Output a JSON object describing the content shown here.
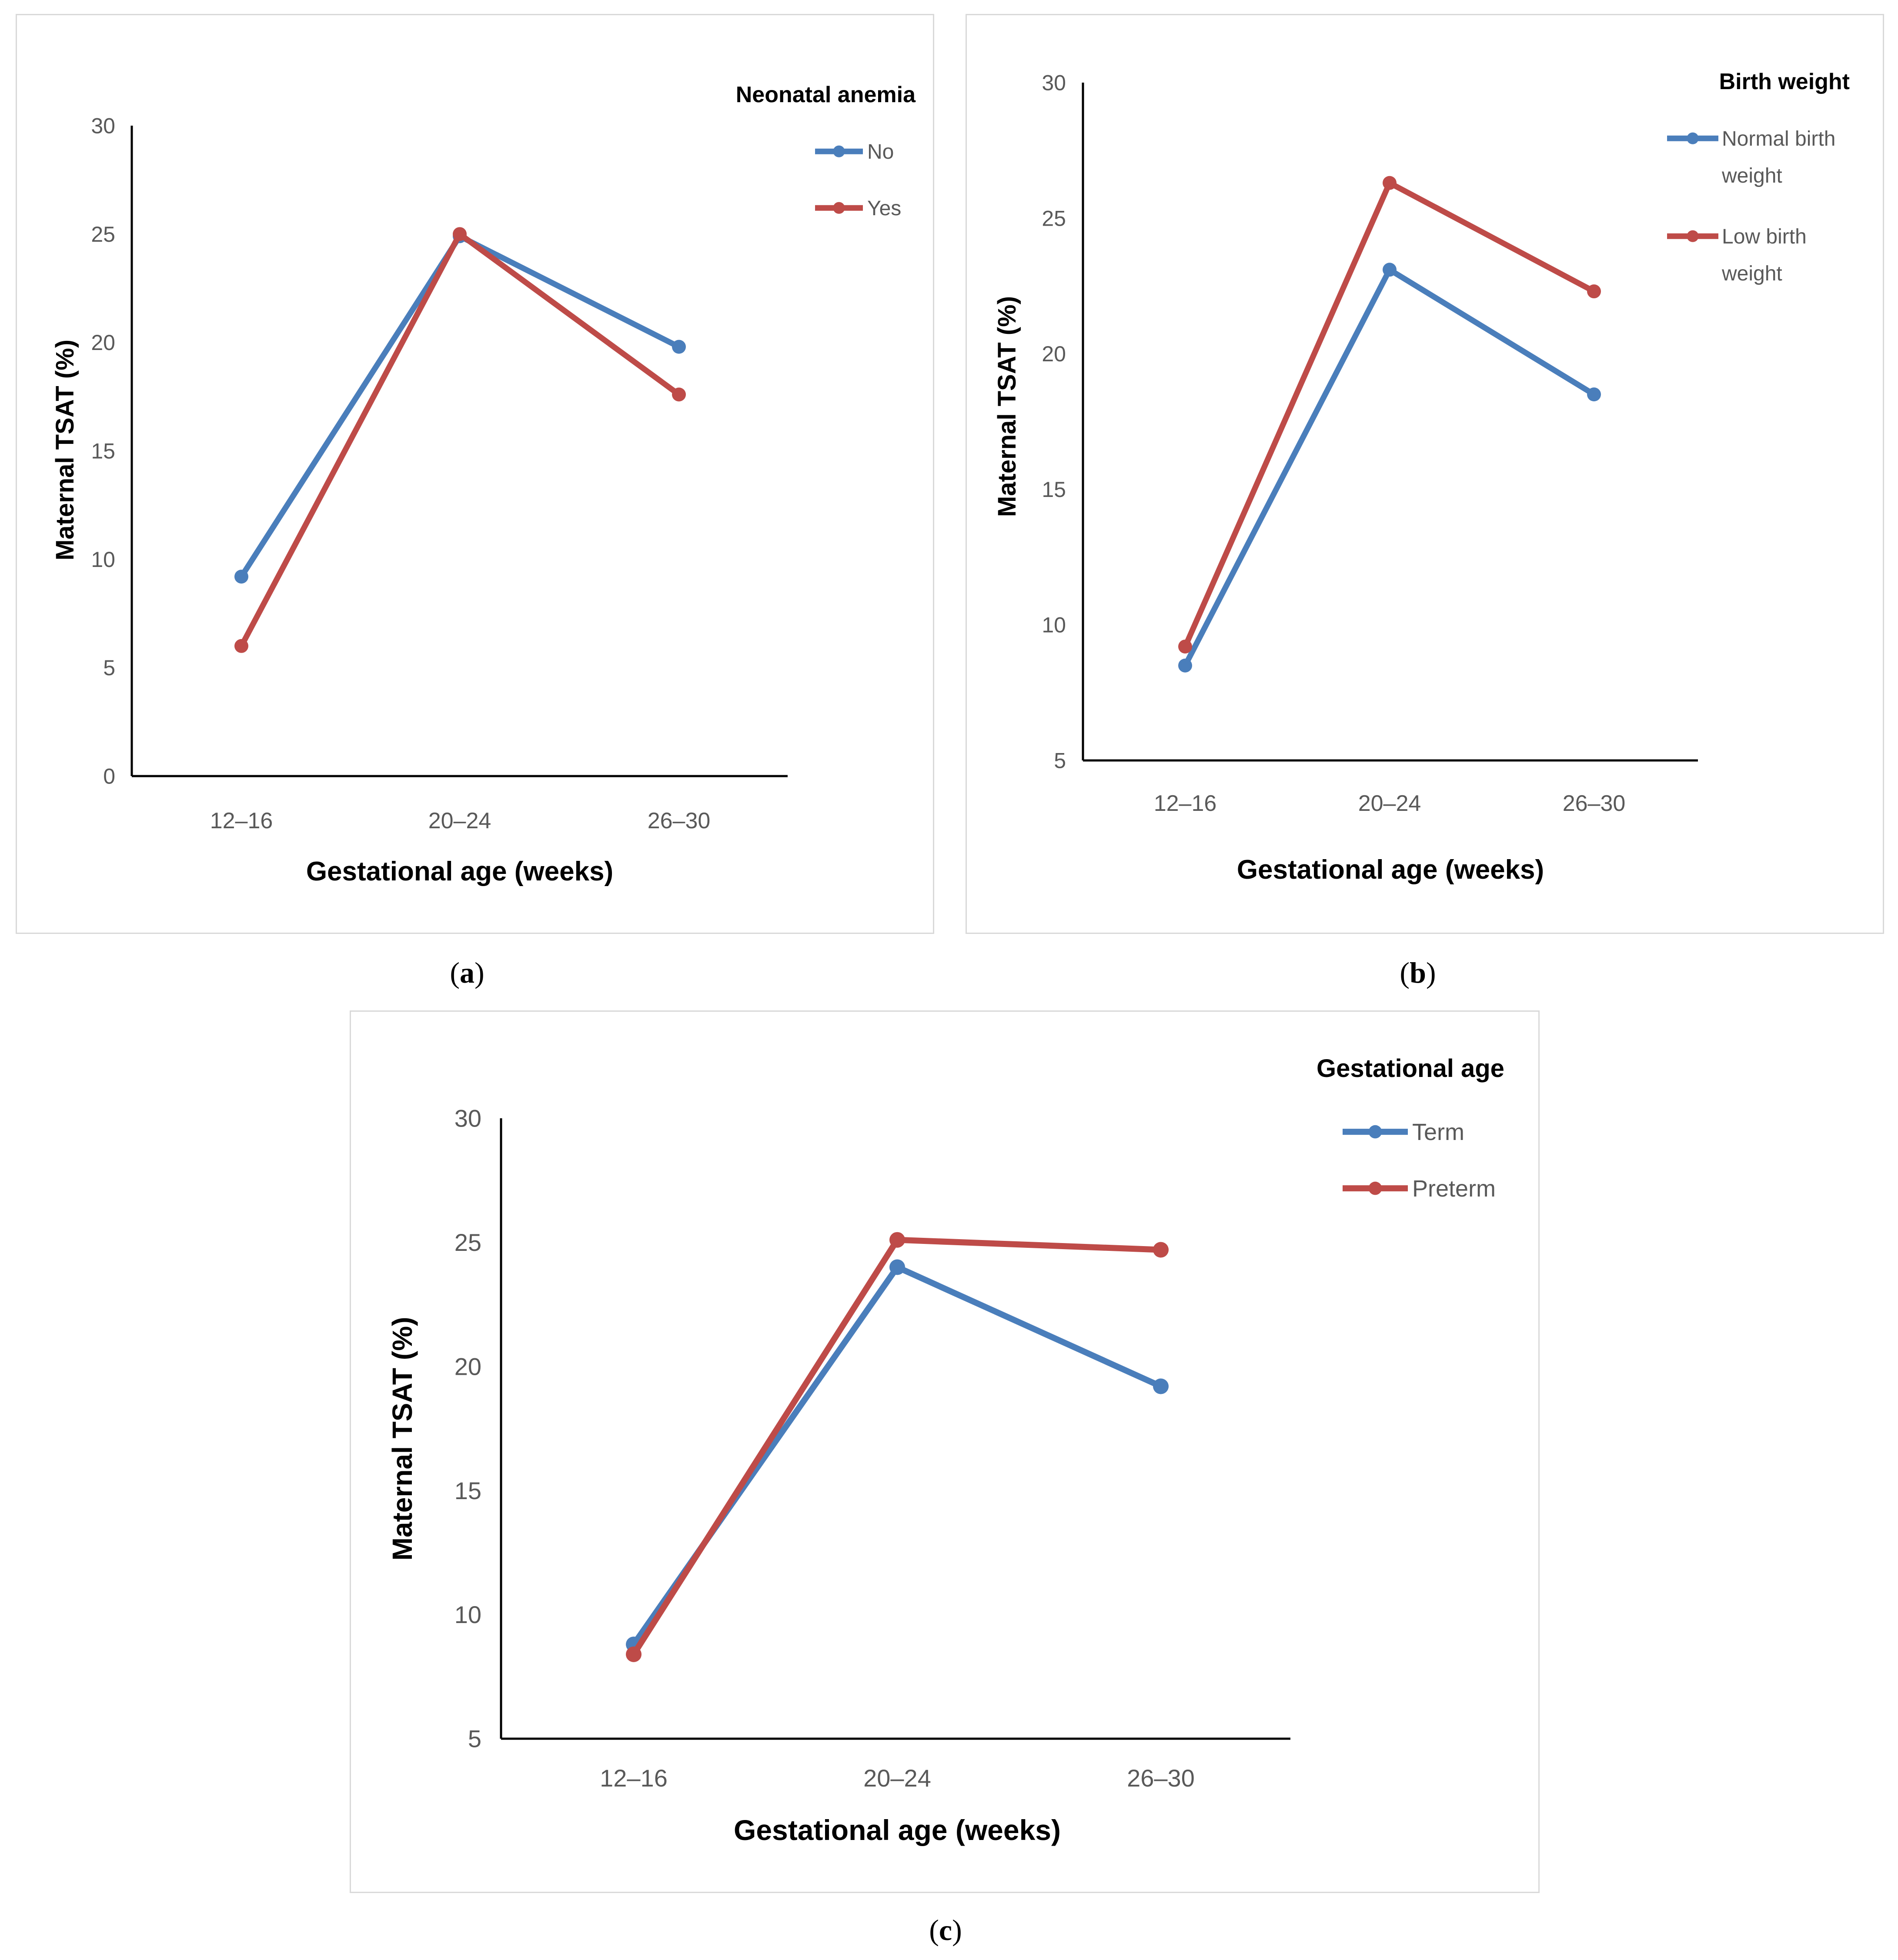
{
  "chart_data": [
    {
      "type": "line",
      "id": "a",
      "panel_label": "a",
      "title": "",
      "categories": [
        "12–16",
        "20–24",
        "26–30"
      ],
      "xlabel": "Gestational age (weeks)",
      "ylabel": "Maternal TSAT (%)",
      "ylim": [
        0,
        30
      ],
      "yticks": [
        "0",
        "5",
        "10",
        "15",
        "20",
        "25",
        "30"
      ],
      "legend_title": "Neonatal anemia",
      "legend_position": "top-right",
      "series": [
        {
          "name": "No",
          "color": "#4a7ebb",
          "values": [
            9.2,
            24.9,
            19.8
          ]
        },
        {
          "name": "Yes",
          "color": "#be4b48",
          "values": [
            6.0,
            25.0,
            17.6
          ]
        }
      ]
    },
    {
      "type": "line",
      "id": "b",
      "panel_label": "b",
      "title": "",
      "categories": [
        "12–16",
        "20–24",
        "26–30"
      ],
      "xlabel": "Gestational age (weeks)",
      "ylabel": "Maternal TSAT (%)",
      "ylim": [
        5,
        30
      ],
      "yticks": [
        "5",
        "10",
        "15",
        "20",
        "25",
        "30"
      ],
      "legend_title": "Birth weight",
      "legend_position": "top-right",
      "series": [
        {
          "name_lines": [
            "Normal birth",
            "weight"
          ],
          "color": "#4a7ebb",
          "values": [
            8.5,
            23.1,
            18.5
          ]
        },
        {
          "name_lines": [
            "Low birth",
            "weight"
          ],
          "color": "#be4b48",
          "values": [
            9.2,
            26.3,
            22.3
          ]
        }
      ]
    },
    {
      "type": "line",
      "id": "c",
      "panel_label": "c",
      "title": "",
      "categories": [
        "12–16",
        "20–24",
        "26–30"
      ],
      "xlabel": "Gestational age (weeks)",
      "ylabel": "Maternal TSAT (%)",
      "ylim": [
        5,
        30
      ],
      "yticks": [
        "5",
        "10",
        "15",
        "20",
        "25",
        "30"
      ],
      "legend_title": "Gestational age",
      "legend_position": "top-right",
      "series": [
        {
          "name": "Term",
          "color": "#4a7ebb",
          "values": [
            8.8,
            24.0,
            19.2
          ]
        },
        {
          "name": "Preterm",
          "color": "#be4b48",
          "values": [
            8.4,
            25.1,
            24.7
          ]
        }
      ]
    }
  ]
}
